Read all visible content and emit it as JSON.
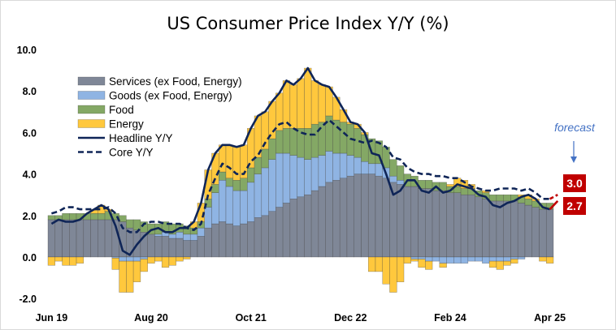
{
  "chart_data": {
    "type": "bar",
    "stacked": true,
    "title": "US Consumer Price Index Y/Y (%)",
    "xlabel": "",
    "ylabel": "",
    "ylim": [
      -2,
      10
    ],
    "yticks": [
      "-2.0",
      "0.0",
      "2.0",
      "4.0",
      "6.0",
      "8.0",
      "10.0"
    ],
    "xtick_labels": [
      {
        "label": "Jun 19",
        "index": 0
      },
      {
        "label": "Aug 20",
        "index": 14
      },
      {
        "label": "Oct 21",
        "index": 28
      },
      {
        "label": "Dec 22",
        "index": 42
      },
      {
        "label": "Feb 24",
        "index": 56
      },
      {
        "label": "Apr 25",
        "index": 70
      }
    ],
    "start_month": "Jun 2019",
    "end_month": "Apr 2025",
    "legend_position": "top-left",
    "series": [
      {
        "name": "Services (ex Food, Energy)",
        "kind": "bar",
        "color": "#7f8797",
        "values": [
          1.8,
          1.8,
          1.8,
          1.8,
          1.8,
          1.8,
          1.8,
          1.8,
          1.8,
          1.8,
          1.7,
          1.4,
          1.3,
          1.2,
          1.1,
          1.0,
          1.0,
          0.9,
          0.9,
          0.8,
          0.8,
          1.0,
          1.4,
          1.6,
          1.7,
          1.6,
          1.5,
          1.6,
          1.7,
          1.9,
          2.0,
          2.2,
          2.4,
          2.6,
          2.8,
          2.9,
          3.0,
          3.2,
          3.4,
          3.6,
          3.7,
          3.8,
          3.9,
          4.0,
          4.0,
          4.0,
          3.9,
          3.8,
          3.6,
          3.5,
          3.4,
          3.4,
          3.3,
          3.3,
          3.2,
          3.2,
          3.1,
          3.1,
          3.0,
          3.0,
          2.9,
          2.8,
          2.7,
          2.7,
          2.7,
          2.7,
          2.6,
          2.5,
          2.4,
          2.3,
          2.3
        ]
      },
      {
        "name": "Goods (ex Food, Energy)",
        "kind": "bar",
        "color": "#8fb4e3",
        "values": [
          0,
          0,
          0,
          0,
          0,
          0,
          0,
          0,
          0,
          -0.05,
          -0.2,
          -0.2,
          -0.2,
          -0.1,
          0,
          0.1,
          0.2,
          0.2,
          0.3,
          0.3,
          0.3,
          0.4,
          1.0,
          1.5,
          2.0,
          1.8,
          1.7,
          1.6,
          1.9,
          2.1,
          2.3,
          2.5,
          2.6,
          2.4,
          2.1,
          1.9,
          1.7,
          1.6,
          1.5,
          1.5,
          1.3,
          1.2,
          1.0,
          0.8,
          0.6,
          0.5,
          0.6,
          0.5,
          0.3,
          0.2,
          0.0,
          -0.1,
          -0.1,
          -0.2,
          -0.2,
          -0.3,
          -0.3,
          -0.3,
          -0.3,
          -0.2,
          -0.2,
          -0.3,
          -0.2,
          -0.2,
          -0.2,
          -0.1,
          -0.1,
          0,
          0,
          0,
          0
        ]
      },
      {
        "name": "Food",
        "kind": "bar",
        "color": "#84a865",
        "values": [
          0.2,
          0.2,
          0.3,
          0.3,
          0.3,
          0.3,
          0.3,
          0.3,
          0.4,
          0.3,
          0.3,
          0.4,
          0.5,
          0.5,
          0.5,
          0.5,
          0.5,
          0.5,
          0.4,
          0.4,
          0.3,
          0.3,
          0.4,
          0.4,
          0.4,
          0.4,
          0.5,
          0.6,
          0.7,
          0.8,
          0.9,
          1.0,
          1.1,
          1.2,
          1.3,
          1.4,
          1.5,
          1.6,
          1.6,
          1.7,
          1.6,
          1.5,
          1.5,
          1.4,
          1.3,
          1.2,
          1.1,
          1.0,
          0.8,
          0.7,
          0.6,
          0.5,
          0.4,
          0.4,
          0.4,
          0.4,
          0.3,
          0.3,
          0.3,
          0.3,
          0.3,
          0.3,
          0.3,
          0.3,
          0.3,
          0.3,
          0.3,
          0.3,
          0.3,
          0.3,
          0.3
        ]
      },
      {
        "name": "Energy",
        "kind": "bar",
        "color": "#ffc83d",
        "values": [
          -0.4,
          -0.2,
          -0.4,
          -0.4,
          -0.3,
          0.0,
          0.2,
          0.4,
          0.1,
          -0.55,
          -1.5,
          -1.5,
          -1.0,
          -0.6,
          -0.3,
          -0.2,
          -0.5,
          -0.4,
          -0.2,
          -0.1,
          0.3,
          0.9,
          1.4,
          1.5,
          1.3,
          1.6,
          1.6,
          1.6,
          1.9,
          2.0,
          1.8,
          1.8,
          1.8,
          2.3,
          2.1,
          2.4,
          2.9,
          2.1,
          1.8,
          1.4,
          1.1,
          0.6,
          0.1,
          0.2,
          0.1,
          -0.7,
          -0.7,
          -1.3,
          -1.7,
          -1.2,
          -0.3,
          -0.1,
          -0.4,
          -0.4,
          0.0,
          -0.2,
          0.1,
          0.4,
          0.4,
          0.2,
          0.0,
          0.1,
          -0.3,
          -0.4,
          -0.2,
          -0.2,
          0.1,
          0.2,
          0.1,
          -0.2,
          -0.3
        ]
      },
      {
        "name": "Headline Y/Y",
        "kind": "line",
        "style": "solid",
        "color": "#0f2557",
        "values": [
          1.6,
          1.8,
          1.7,
          1.7,
          1.8,
          2.1,
          2.3,
          2.5,
          2.3,
          1.5,
          0.3,
          0.1,
          0.6,
          1.0,
          1.3,
          1.4,
          1.2,
          1.2,
          1.4,
          1.4,
          1.7,
          2.6,
          4.2,
          5.0,
          5.4,
          5.4,
          5.3,
          5.4,
          6.2,
          6.8,
          7.0,
          7.5,
          7.9,
          8.5,
          8.3,
          8.6,
          9.1,
          8.5,
          8.3,
          8.2,
          7.7,
          7.1,
          6.5,
          6.4,
          6.0,
          5.0,
          4.9,
          4.0,
          3.0,
          3.2,
          3.7,
          3.7,
          3.2,
          3.1,
          3.4,
          3.1,
          3.2,
          3.5,
          3.4,
          3.3,
          3.0,
          2.9,
          2.5,
          2.4,
          2.6,
          2.7,
          2.9,
          3.0,
          2.8,
          2.4,
          2.3
        ]
      },
      {
        "name": "Core Y/Y",
        "kind": "line",
        "style": "dashed",
        "color": "#0f2557",
        "values": [
          2.1,
          2.2,
          2.4,
          2.4,
          2.3,
          2.3,
          2.3,
          2.3,
          2.4,
          2.1,
          1.4,
          1.2,
          1.2,
          1.6,
          1.7,
          1.7,
          1.6,
          1.6,
          1.6,
          1.4,
          1.3,
          1.6,
          3.0,
          3.8,
          4.5,
          4.3,
          4.0,
          4.0,
          4.6,
          4.9,
          5.5,
          6.0,
          6.4,
          6.5,
          6.2,
          6.0,
          5.9,
          5.9,
          6.3,
          6.6,
          6.3,
          6.0,
          5.7,
          5.6,
          5.5,
          5.6,
          5.5,
          5.3,
          4.8,
          4.7,
          4.3,
          4.1,
          4.0,
          4.0,
          3.9,
          3.9,
          3.8,
          3.8,
          3.6,
          3.4,
          3.3,
          3.2,
          3.2,
          3.3,
          3.3,
          3.3,
          3.2,
          3.3,
          3.1,
          2.8,
          2.8
        ]
      }
    ],
    "forecast": {
      "label": "forecast",
      "color": "#c00000",
      "headline": 2.7,
      "core": 3.0,
      "headline_label": "2.7",
      "core_label": "3.0"
    }
  }
}
